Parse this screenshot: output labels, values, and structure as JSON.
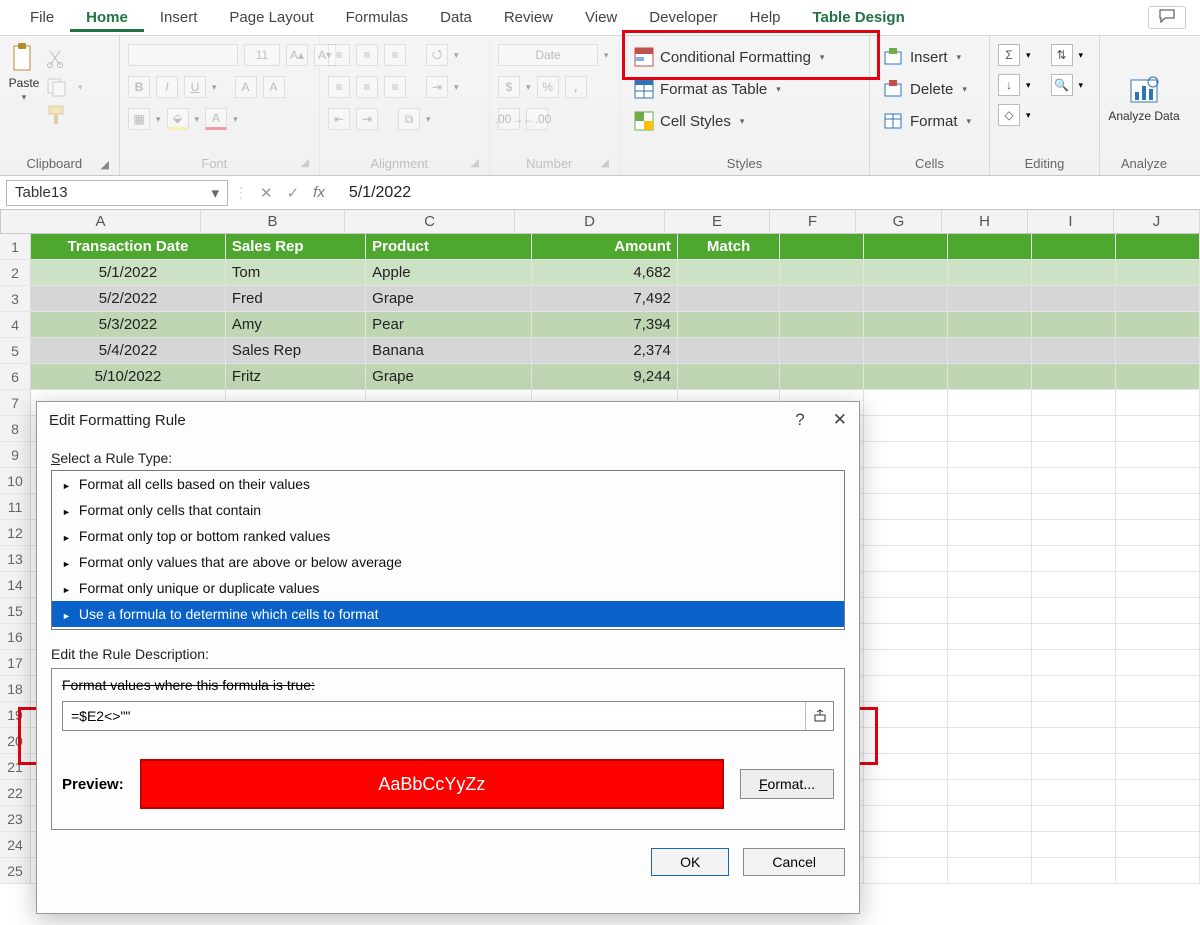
{
  "tabs": {
    "file": "File",
    "home": "Home",
    "insert": "Insert",
    "page_layout": "Page Layout",
    "formulas": "Formulas",
    "data": "Data",
    "review": "Review",
    "view": "View",
    "developer": "Developer",
    "help": "Help",
    "table_design": "Table Design"
  },
  "ribbon": {
    "clipboard": {
      "label": "Clipboard",
      "paste": "Paste"
    },
    "font": {
      "label": "Font",
      "size": "11"
    },
    "alignment": {
      "label": "Alignment"
    },
    "number": {
      "label": "Number",
      "format": "Date"
    },
    "styles": {
      "label": "Styles",
      "cond": "Conditional Formatting",
      "table": "Format as Table",
      "cell": "Cell Styles"
    },
    "cells": {
      "label": "Cells",
      "insert": "Insert",
      "delete": "Delete",
      "format": "Format"
    },
    "editing": {
      "label": "Editing"
    },
    "analyze": {
      "label": "Analyze",
      "btn": "Analyze Data"
    }
  },
  "formula_bar": {
    "name": "Table13",
    "value": "5/1/2022"
  },
  "grid": {
    "col_widths": {
      "A": 200,
      "B": 144,
      "C": 170,
      "D": 150,
      "E": 105,
      "rest": 86
    },
    "col_letters": [
      "A",
      "B",
      "C",
      "D",
      "E",
      "F",
      "G",
      "H",
      "I",
      "J"
    ],
    "headers": [
      "Transaction Date",
      "Sales Rep",
      "Product",
      "Amount",
      "Match"
    ],
    "rows": [
      {
        "n": 2,
        "date": "5/1/2022",
        "rep": "Tom",
        "prod": "Apple",
        "amt": "4,682",
        "cls": "trow-0"
      },
      {
        "n": 3,
        "date": "5/2/2022",
        "rep": "Fred",
        "prod": "Grape",
        "amt": "7,492",
        "cls": "trow-alt"
      },
      {
        "n": 4,
        "date": "5/3/2022",
        "rep": "Amy",
        "prod": "Pear",
        "amt": "7,394",
        "cls": "trow-nor"
      },
      {
        "n": 5,
        "date": "5/4/2022",
        "rep": "Sales Rep",
        "prod": "Banana",
        "amt": "2,374",
        "cls": "trow-alt"
      },
      {
        "n": 6,
        "date": "5/10/2022",
        "rep": "Fritz",
        "prod": "Grape",
        "amt": "9,244",
        "cls": "trow-nor"
      }
    ],
    "extra_rownums": [
      7,
      8,
      9,
      10,
      11,
      12,
      13,
      14,
      15,
      16,
      17,
      18,
      19,
      20,
      21,
      22,
      23,
      24,
      25
    ]
  },
  "dialog": {
    "title": "Edit Formatting Rule",
    "select_label": "Select a Rule Type:",
    "rules": [
      "Format all cells based on their values",
      "Format only cells that contain",
      "Format only top or bottom ranked values",
      "Format only values that are above or below average",
      "Format only unique or duplicate values",
      "Use a formula to determine which cells to format"
    ],
    "selected_rule_index": 5,
    "edit_desc_label": "Edit the Rule Description:",
    "formula_label": "Format values where this formula is true:",
    "formula": "=$E2<>\"\"",
    "preview_label": "Preview:",
    "preview_text": "AaBbCcYyZz",
    "format_btn": "Format...",
    "ok": "OK",
    "cancel": "Cancel"
  },
  "colors": {
    "table_header": "#4ea72e",
    "highlight_red": "#e3000f",
    "select_blue": "#0a62c9"
  }
}
